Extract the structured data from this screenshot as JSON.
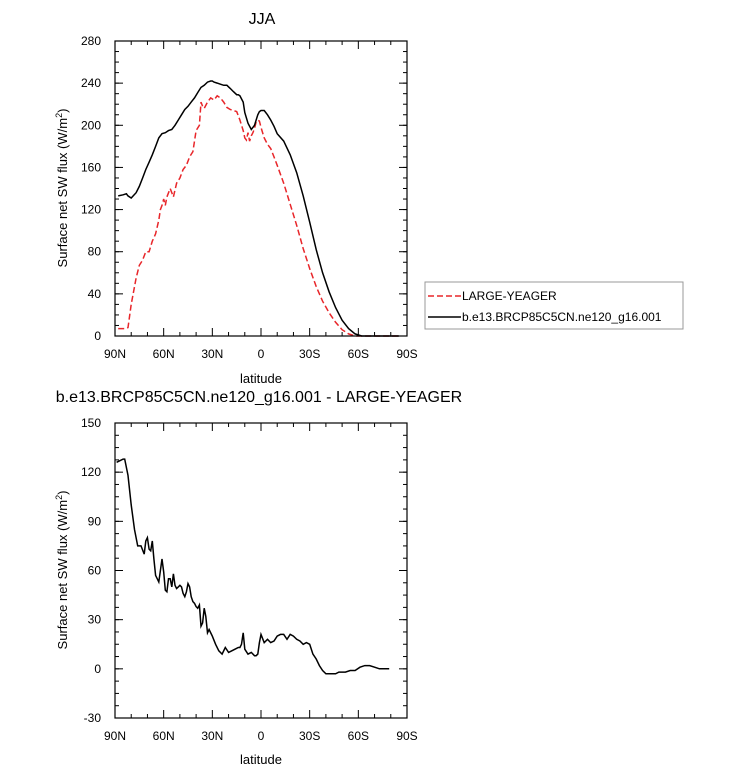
{
  "chart_data": [
    {
      "type": "line",
      "title": "JJA",
      "xlabel": "latitude",
      "ylabel": "Surface net SW flux (W/m",
      "ylabel_sup": "2",
      "ylabel_end": ")",
      "xlim": [
        90,
        -90
      ],
      "ylim": [
        0,
        280
      ],
      "xticks": [
        90,
        60,
        30,
        0,
        -30,
        -60,
        -90
      ],
      "xtick_labels": [
        "90N",
        "60N",
        "30N",
        "0",
        "30S",
        "60S",
        "90S"
      ],
      "yticks": [
        0,
        40,
        80,
        120,
        160,
        200,
        240,
        280
      ],
      "ytick_labels": [
        "0",
        "40",
        "80",
        "120",
        "160",
        "200",
        "240",
        "280"
      ],
      "grid": false,
      "legend": "right",
      "series": [
        {
          "name": "LARGE-YEAGER",
          "color": "#e8262a",
          "dash": "dashed",
          "x": [
            88,
            84,
            82,
            80,
            77,
            75,
            73,
            71,
            69,
            67,
            65,
            63,
            62,
            61,
            60,
            59,
            58,
            56,
            54,
            52,
            50,
            48,
            46,
            44,
            42,
            40,
            38,
            37,
            36,
            35,
            33,
            31,
            29,
            27,
            25,
            23,
            21,
            19,
            17,
            15,
            13,
            11,
            10,
            9,
            8,
            7,
            6,
            5,
            4,
            3,
            2,
            1,
            0,
            -2,
            -4,
            -6,
            -8,
            -10,
            -14,
            -18,
            -22,
            -26,
            -30,
            -34,
            -38,
            -42,
            -46,
            -50,
            -54,
            -58,
            -62,
            -66,
            -70,
            -75,
            -80,
            -85
          ],
          "y": [
            7,
            7,
            8,
            30,
            55,
            67,
            72,
            80,
            80,
            90,
            97,
            110,
            120,
            124,
            130,
            124,
            132,
            140,
            132,
            145,
            150,
            158,
            162,
            170,
            175,
            195,
            200,
            222,
            218,
            216,
            222,
            226,
            224,
            228,
            226,
            222,
            217,
            215,
            214,
            213,
            205,
            195,
            188,
            186,
            193,
            185,
            190,
            193,
            197,
            203,
            205,
            204,
            198,
            188,
            182,
            178,
            170,
            162,
            145,
            125,
            105,
            83,
            64,
            47,
            33,
            22,
            13,
            6,
            2,
            0,
            0,
            0,
            0,
            0,
            0,
            0
          ]
        },
        {
          "name": "b.e13.BRCP85C5CN.ne120_g16.001",
          "color": "#000000",
          "dash": "solid",
          "x": [
            88,
            85,
            83,
            82,
            80,
            77,
            75,
            73,
            71,
            69,
            67,
            65,
            63,
            61,
            59,
            57,
            55,
            53,
            51,
            49,
            47,
            45,
            43,
            41,
            39,
            37,
            35,
            33,
            31,
            30,
            29,
            27,
            25,
            23,
            21,
            19,
            17,
            15,
            14,
            13,
            11,
            10,
            8,
            6,
            4,
            2,
            1,
            0,
            -2,
            -4,
            -6,
            -8,
            -10,
            -14,
            -18,
            -22,
            -26,
            -30,
            -34,
            -38,
            -42,
            -46,
            -50,
            -54,
            -58,
            -62,
            -66,
            -70,
            -75,
            -80,
            -85
          ],
          "y": [
            133,
            134,
            135,
            133,
            131,
            136,
            142,
            150,
            158,
            165,
            172,
            180,
            188,
            192,
            193,
            195,
            196,
            200,
            205,
            210,
            215,
            218,
            222,
            226,
            231,
            236,
            238,
            241,
            242,
            242,
            241,
            240,
            239,
            238,
            238,
            235,
            232,
            229,
            229,
            228,
            222,
            212,
            202,
            196,
            200,
            210,
            213,
            214,
            214,
            210,
            205,
            199,
            192,
            185,
            172,
            155,
            133,
            108,
            82,
            60,
            42,
            27,
            15,
            7,
            2,
            0,
            0,
            0,
            0,
            0,
            0
          ]
        }
      ]
    },
    {
      "type": "line",
      "title": "b.e13.BRCP85C5CN.ne120_g16.001 - LARGE-YEAGER",
      "xlabel": "latitude",
      "ylabel": "Surface net SW flux (W/m",
      "ylabel_sup": "2",
      "ylabel_end": ")",
      "xlim": [
        90,
        -90
      ],
      "ylim": [
        -30,
        150
      ],
      "xticks": [
        90,
        60,
        30,
        0,
        -30,
        -60,
        -90
      ],
      "xtick_labels": [
        "90N",
        "60N",
        "30N",
        "0",
        "30S",
        "60S",
        "90S"
      ],
      "yticks": [
        -30,
        0,
        30,
        60,
        90,
        120,
        150
      ],
      "ytick_labels": [
        "-30",
        "0",
        "30",
        "60",
        "90",
        "120",
        "150"
      ],
      "grid": false,
      "legend": "none",
      "series": [
        {
          "color": "#000000",
          "dash": "solid",
          "x": [
            89,
            87,
            85,
            84,
            82,
            80,
            78,
            76,
            74,
            72,
            71,
            70,
            69,
            68,
            67,
            66,
            65,
            64,
            63,
            62,
            61,
            60,
            59,
            58,
            57,
            56,
            55,
            54,
            53,
            52,
            51,
            50,
            49,
            48,
            47,
            46,
            45,
            44,
            43,
            42,
            41,
            40,
            39,
            38,
            37,
            36,
            35,
            34,
            33,
            32,
            30,
            28,
            26,
            24,
            22,
            20,
            18,
            16,
            14,
            13,
            12,
            11,
            10,
            8,
            6,
            4,
            3,
            2,
            1,
            0,
            -2,
            -4,
            -6,
            -8,
            -10,
            -12,
            -14,
            -16,
            -18,
            -20,
            -22,
            -24,
            -26,
            -28,
            -30,
            -32,
            -34,
            -36,
            -38,
            -40,
            -42,
            -44,
            -46,
            -48,
            -50,
            -52,
            -55,
            -58,
            -61,
            -64,
            -67,
            -70,
            -73,
            -76,
            -79
          ],
          "y": [
            126,
            127,
            128,
            128,
            118,
            100,
            85,
            75,
            75,
            70,
            78,
            80,
            73,
            72,
            78,
            67,
            57,
            55,
            53,
            60,
            67,
            59,
            48,
            47,
            55,
            55,
            50,
            58,
            51,
            49,
            50,
            51,
            50,
            46,
            44,
            47,
            52,
            50,
            44,
            41,
            40,
            38,
            37,
            39,
            26,
            28,
            37,
            32,
            22,
            24,
            20,
            15,
            11,
            9,
            13,
            10,
            11,
            12,
            13,
            13,
            15,
            22,
            12,
            9,
            10,
            8,
            8,
            9,
            16,
            21,
            16,
            18,
            16,
            17,
            20,
            21,
            21,
            18,
            21,
            20,
            18,
            17,
            15,
            16,
            15,
            9,
            6,
            2,
            -1,
            -3,
            -3,
            -3,
            -3,
            -2,
            -2,
            -2,
            -1,
            -1,
            1,
            2,
            2,
            1,
            0,
            0,
            0
          ]
        }
      ]
    }
  ]
}
